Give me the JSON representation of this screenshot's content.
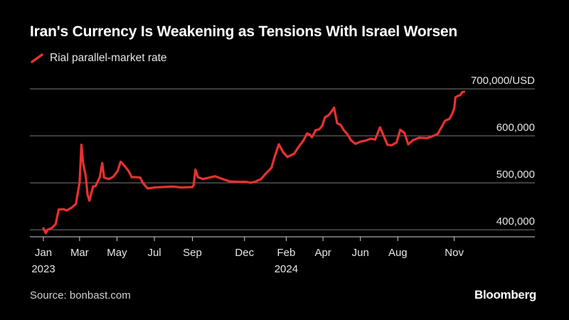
{
  "title": "Iran's Currency Is Weakening as Tensions With Israel Worsen",
  "source": "Source: bonbast.com",
  "brand": "Bloomberg",
  "colors": {
    "background": "#000000",
    "series": "#e8312f",
    "grid": "#7a7a7a"
  },
  "chart_data": {
    "type": "line",
    "title": "Iran's Currency Is Weakening as Tensions With Israel Worsen",
    "xlabel": "",
    "ylabel": "",
    "unit": "/USD",
    "ylim": [
      385000,
      700000
    ],
    "xlim": [
      "2023-01-01",
      "2024-11-20"
    ],
    "legend_position": "top-left",
    "grid": true,
    "y_ticks": [
      {
        "value": 400000,
        "label": "400,000"
      },
      {
        "value": 500000,
        "label": "500,000"
      },
      {
        "value": 600000,
        "label": "600,000"
      },
      {
        "value": 700000,
        "label": "700,000/USD"
      }
    ],
    "x_ticks": [
      {
        "date": "2023-01-01",
        "label": "Jan",
        "year": "2023"
      },
      {
        "date": "2023-03-01",
        "label": "Mar",
        "year": ""
      },
      {
        "date": "2023-05-01",
        "label": "May",
        "year": ""
      },
      {
        "date": "2023-07-01",
        "label": "Jul",
        "year": ""
      },
      {
        "date": "2023-09-01",
        "label": "Sep",
        "year": ""
      },
      {
        "date": "2023-11-25",
        "label": "Dec",
        "year": ""
      },
      {
        "date": "2024-02-01",
        "label": "Feb",
        "year": "2024"
      },
      {
        "date": "2024-04-01",
        "label": "Apr",
        "year": ""
      },
      {
        "date": "2024-06-01",
        "label": "Jun",
        "year": ""
      },
      {
        "date": "2024-08-01",
        "label": "Aug",
        "year": ""
      },
      {
        "date": "2024-11-01",
        "label": "Nov",
        "year": ""
      }
    ],
    "series": [
      {
        "name": "Rial parallel-market rate",
        "color": "#e8312f",
        "points": [
          [
            "2023-01-01",
            403000
          ],
          [
            "2023-01-05",
            393000
          ],
          [
            "2023-01-08",
            400000
          ],
          [
            "2023-01-15",
            404000
          ],
          [
            "2023-01-21",
            412000
          ],
          [
            "2023-01-26",
            443000
          ],
          [
            "2023-02-03",
            444000
          ],
          [
            "2023-02-08",
            441000
          ],
          [
            "2023-02-16",
            447000
          ],
          [
            "2023-02-23",
            455000
          ],
          [
            "2023-03-01",
            500000
          ],
          [
            "2023-03-04",
            581000
          ],
          [
            "2023-03-07",
            540000
          ],
          [
            "2023-03-11",
            515000
          ],
          [
            "2023-03-14",
            475000
          ],
          [
            "2023-03-17",
            462000
          ],
          [
            "2023-03-23",
            492000
          ],
          [
            "2023-03-27",
            493000
          ],
          [
            "2023-04-03",
            512000
          ],
          [
            "2023-04-07",
            542000
          ],
          [
            "2023-04-10",
            511000
          ],
          [
            "2023-04-18",
            508000
          ],
          [
            "2023-04-25",
            513000
          ],
          [
            "2023-05-02",
            525000
          ],
          [
            "2023-05-07",
            545000
          ],
          [
            "2023-05-14",
            535000
          ],
          [
            "2023-05-20",
            525000
          ],
          [
            "2023-05-25",
            512000
          ],
          [
            "2023-06-01",
            512000
          ],
          [
            "2023-06-08",
            511000
          ],
          [
            "2023-06-12",
            500000
          ],
          [
            "2023-06-20",
            488000
          ],
          [
            "2023-07-01",
            490000
          ],
          [
            "2023-07-15",
            491000
          ],
          [
            "2023-08-01",
            492000
          ],
          [
            "2023-08-15",
            490000
          ],
          [
            "2023-09-01",
            491000
          ],
          [
            "2023-09-03",
            495000
          ],
          [
            "2023-09-06",
            528000
          ],
          [
            "2023-09-10",
            512000
          ],
          [
            "2023-09-18",
            508000
          ],
          [
            "2023-09-25",
            510000
          ],
          [
            "2023-10-08",
            514000
          ],
          [
            "2023-10-20",
            508000
          ],
          [
            "2023-11-01",
            503000
          ],
          [
            "2023-11-15",
            502000
          ],
          [
            "2023-11-28",
            502000
          ],
          [
            "2023-12-05",
            500000
          ],
          [
            "2023-12-12",
            502000
          ],
          [
            "2023-12-22",
            508000
          ],
          [
            "2023-12-30",
            520000
          ],
          [
            "2024-01-08",
            532000
          ],
          [
            "2024-01-13",
            555000
          ],
          [
            "2024-01-20",
            582000
          ],
          [
            "2024-01-27",
            565000
          ],
          [
            "2024-02-03",
            555000
          ],
          [
            "2024-02-14",
            562000
          ],
          [
            "2024-02-22",
            578000
          ],
          [
            "2024-02-29",
            590000
          ],
          [
            "2024-03-06",
            605000
          ],
          [
            "2024-03-10",
            603000
          ],
          [
            "2024-03-14",
            597000
          ],
          [
            "2024-03-20",
            612000
          ],
          [
            "2024-03-26",
            614000
          ],
          [
            "2024-03-31",
            622000
          ],
          [
            "2024-04-04",
            639000
          ],
          [
            "2024-04-10",
            644000
          ],
          [
            "2024-04-15",
            652000
          ],
          [
            "2024-04-19",
            660000
          ],
          [
            "2024-04-24",
            627000
          ],
          [
            "2024-04-30",
            623000
          ],
          [
            "2024-05-05",
            612000
          ],
          [
            "2024-05-11",
            603000
          ],
          [
            "2024-05-17",
            590000
          ],
          [
            "2024-05-24",
            583000
          ],
          [
            "2024-06-02",
            588000
          ],
          [
            "2024-06-10",
            590000
          ],
          [
            "2024-06-18",
            594000
          ],
          [
            "2024-06-25",
            592000
          ],
          [
            "2024-07-03",
            618000
          ],
          [
            "2024-07-09",
            600000
          ],
          [
            "2024-07-15",
            581000
          ],
          [
            "2024-07-22",
            580000
          ],
          [
            "2024-07-30",
            586000
          ],
          [
            "2024-08-05",
            613000
          ],
          [
            "2024-08-12",
            606000
          ],
          [
            "2024-08-18",
            582000
          ],
          [
            "2024-08-26",
            591000
          ],
          [
            "2024-09-05",
            596000
          ],
          [
            "2024-09-18",
            595000
          ],
          [
            "2024-09-28",
            600000
          ],
          [
            "2024-10-05",
            604000
          ],
          [
            "2024-10-12",
            620000
          ],
          [
            "2024-10-17",
            632000
          ],
          [
            "2024-10-24",
            636000
          ],
          [
            "2024-10-28",
            645000
          ],
          [
            "2024-11-01",
            658000
          ],
          [
            "2024-11-03",
            682000
          ],
          [
            "2024-11-07",
            685000
          ],
          [
            "2024-11-11",
            687000
          ],
          [
            "2024-11-14",
            693000
          ],
          [
            "2024-11-17",
            694000
          ]
        ]
      }
    ]
  }
}
